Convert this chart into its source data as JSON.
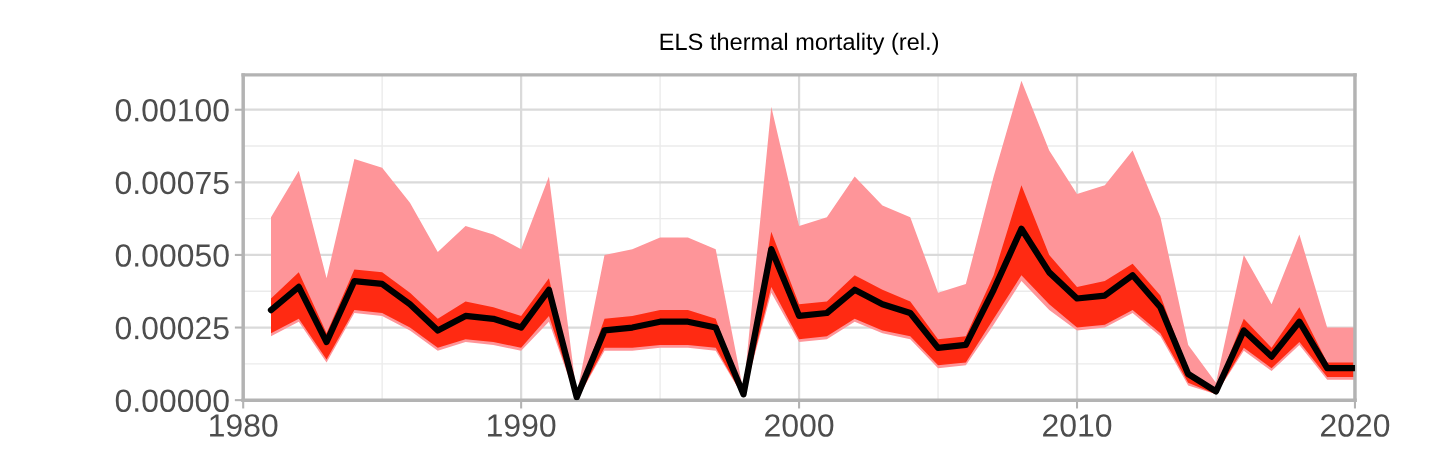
{
  "chart_data": {
    "type": "line",
    "title": "ELS thermal mortality (rel.)",
    "x": [
      1981,
      1982,
      1983,
      1984,
      1985,
      1986,
      1987,
      1988,
      1989,
      1990,
      1991,
      1992,
      1993,
      1994,
      1995,
      1996,
      1997,
      1998,
      1999,
      2000,
      2001,
      2002,
      2003,
      2004,
      2005,
      2006,
      2007,
      2008,
      2009,
      2010,
      2011,
      2012,
      2013,
      2014,
      2015,
      2016,
      2017,
      2018,
      2019,
      2020
    ],
    "series": [
      {
        "color": "#fe9599",
        "values": [
          null,
          null,
          null,
          null,
          null,
          null,
          null,
          null,
          null,
          null,
          null,
          null,
          null,
          null,
          null,
          null,
          null,
          null,
          null,
          null,
          null,
          null,
          null,
          null,
          null,
          null,
          null,
          null,
          null,
          null,
          null,
          null,
          null,
          null,
          null,
          null,
          null,
          null,
          null,
          null
        ],
        "upper": [
          0.00063,
          0.00079,
          0.00042,
          0.00083,
          0.0008,
          0.00068,
          0.00051,
          0.0006,
          0.00057,
          0.00052,
          0.00077,
          2e-05,
          0.0005,
          0.00052,
          0.00056,
          0.00056,
          0.00052,
          3e-05,
          0.00101,
          0.0006,
          0.00063,
          0.00077,
          0.00067,
          0.00063,
          0.00037,
          0.0004,
          0.00077,
          0.0011,
          0.00086,
          0.00071,
          0.00074,
          0.00086,
          0.00063,
          0.00019,
          6e-05,
          0.0005,
          0.00033,
          0.00057,
          0.00025,
          0.00025
        ],
        "lower": [
          0.00022,
          0.00027,
          0.00013,
          0.0003,
          0.00029,
          0.00024,
          0.00017,
          0.0002,
          0.00019,
          0.00017,
          0.00027,
          0.0,
          0.00017,
          0.00017,
          0.00018,
          0.00018,
          0.00017,
          1e-05,
          0.00037,
          0.0002,
          0.00021,
          0.00027,
          0.00023,
          0.00021,
          0.00011,
          0.00012,
          0.00026,
          0.00041,
          0.00031,
          0.00024,
          0.00025,
          0.0003,
          0.00022,
          5e-05,
          2e-05,
          0.00017,
          0.0001,
          0.00019,
          7e-05,
          7e-05
        ]
      },
      {
        "color": "#ff2a12",
        "values": [
          null,
          null,
          null,
          null,
          null,
          null,
          null,
          null,
          null,
          null,
          null,
          null,
          null,
          null,
          null,
          null,
          null,
          null,
          null,
          null,
          null,
          null,
          null,
          null,
          null,
          null,
          null,
          null,
          null,
          null,
          null,
          null,
          null,
          null,
          null,
          null,
          null,
          null,
          null,
          null
        ],
        "upper": [
          0.00035,
          0.00044,
          0.00023,
          0.00045,
          0.00044,
          0.00037,
          0.00028,
          0.00034,
          0.00032,
          0.00029,
          0.00042,
          1e-05,
          0.00028,
          0.00029,
          0.00031,
          0.00031,
          0.00028,
          2e-05,
          0.00058,
          0.00033,
          0.00034,
          0.00043,
          0.00038,
          0.00034,
          0.00021,
          0.00022,
          0.00043,
          0.00074,
          0.0005,
          0.00039,
          0.00041,
          0.00047,
          0.00036,
          0.0001,
          4e-05,
          0.00028,
          0.00018,
          0.00032,
          0.00013,
          0.00013
        ],
        "lower": [
          0.00023,
          0.00028,
          0.00014,
          0.00031,
          0.0003,
          0.00025,
          0.00018,
          0.00021,
          0.0002,
          0.00018,
          0.00029,
          0.0,
          0.00018,
          0.00018,
          0.00019,
          0.00019,
          0.00018,
          1e-05,
          0.00039,
          0.00021,
          0.00022,
          0.00028,
          0.00024,
          0.00022,
          0.00012,
          0.00013,
          0.00028,
          0.00043,
          0.00033,
          0.00025,
          0.00026,
          0.00031,
          0.00023,
          6e-05,
          2e-05,
          0.00018,
          0.00011,
          0.0002,
          8e-05,
          8e-05
        ]
      },
      {
        "color": "#000000",
        "values": [
          0.00031,
          0.00039,
          0.0002,
          0.00041,
          0.0004,
          0.00033,
          0.00024,
          0.00029,
          0.00028,
          0.00025,
          0.00038,
          1e-05,
          0.00024,
          0.00025,
          0.00027,
          0.00027,
          0.00025,
          2e-05,
          0.00052,
          0.00029,
          0.0003,
          0.00038,
          0.00033,
          0.0003,
          0.00018,
          0.00019,
          0.00038,
          0.00059,
          0.00044,
          0.00035,
          0.00036,
          0.00043,
          0.00032,
          9e-05,
          3e-05,
          0.00024,
          0.00015,
          0.00027,
          0.00011,
          0.00011
        ]
      }
    ],
    "xlim": [
      1980,
      2020
    ],
    "xticks": [
      1980,
      1990,
      2000,
      2010,
      2020
    ],
    "ylim": [
      0,
      0.00112
    ],
    "yticks": [
      {
        "value": 0,
        "label": "0.00000"
      },
      {
        "value": 0.00025,
        "label": "0.00025"
      },
      {
        "value": 0.0005,
        "label": "0.00050"
      },
      {
        "value": 0.00075,
        "label": "0.00075"
      },
      {
        "value": 0.001,
        "label": "0.00100"
      }
    ],
    "grid": true,
    "line_style": "solid"
  }
}
